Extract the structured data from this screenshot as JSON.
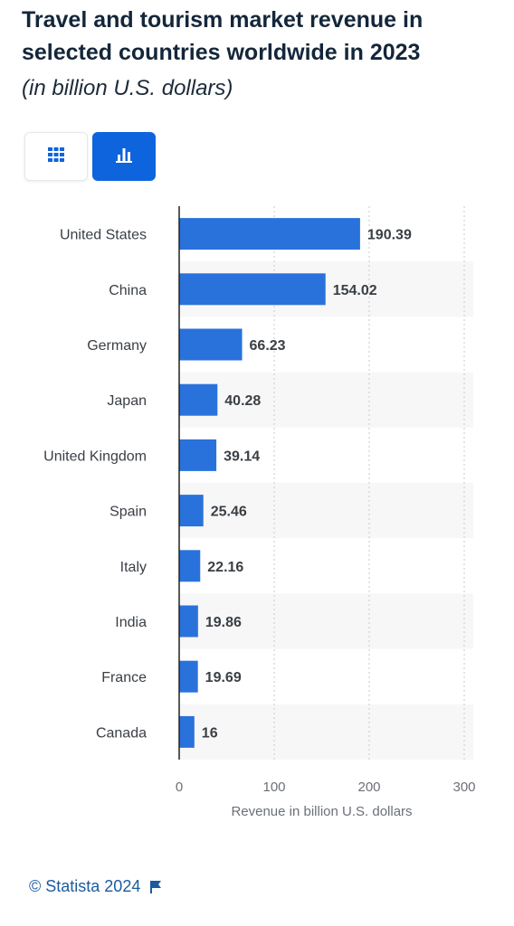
{
  "header": {
    "title": "Travel and tourism market revenue in selected countries worldwide in 2023",
    "subtitle": "(in billion U.S. dollars)"
  },
  "toolbar": {
    "table_view_icon": "grid-icon",
    "chart_view_icon": "bar-chart-icon",
    "active_view": "chart"
  },
  "colors": {
    "bar": "#2a72db",
    "active_button": "#0e64dc",
    "stripe": "#f7f7f7",
    "footer": "#1b5b9e"
  },
  "chart_data": {
    "type": "bar",
    "orientation": "horizontal",
    "categories": [
      "United States",
      "China",
      "Germany",
      "Japan",
      "United Kingdom",
      "Spain",
      "Italy",
      "India",
      "France",
      "Canada"
    ],
    "values": [
      190.39,
      154.02,
      66.23,
      40.28,
      39.14,
      25.46,
      22.16,
      19.86,
      19.69,
      16
    ],
    "value_labels": [
      "190.39",
      "154.02",
      "66.23",
      "40.28",
      "39.14",
      "25.46",
      "22.16",
      "19.86",
      "19.69",
      "16"
    ],
    "xlabel": "Revenue in billion U.S. dollars",
    "ylabel": "",
    "xlim": [
      0,
      300
    ],
    "xticks": [
      0,
      100,
      200,
      300
    ],
    "xtick_labels": [
      "0",
      "100",
      "200",
      "300"
    ],
    "grid": "vertical dotted"
  },
  "footer": {
    "copyright": "© Statista 2024",
    "flag_icon": "flag-icon"
  }
}
